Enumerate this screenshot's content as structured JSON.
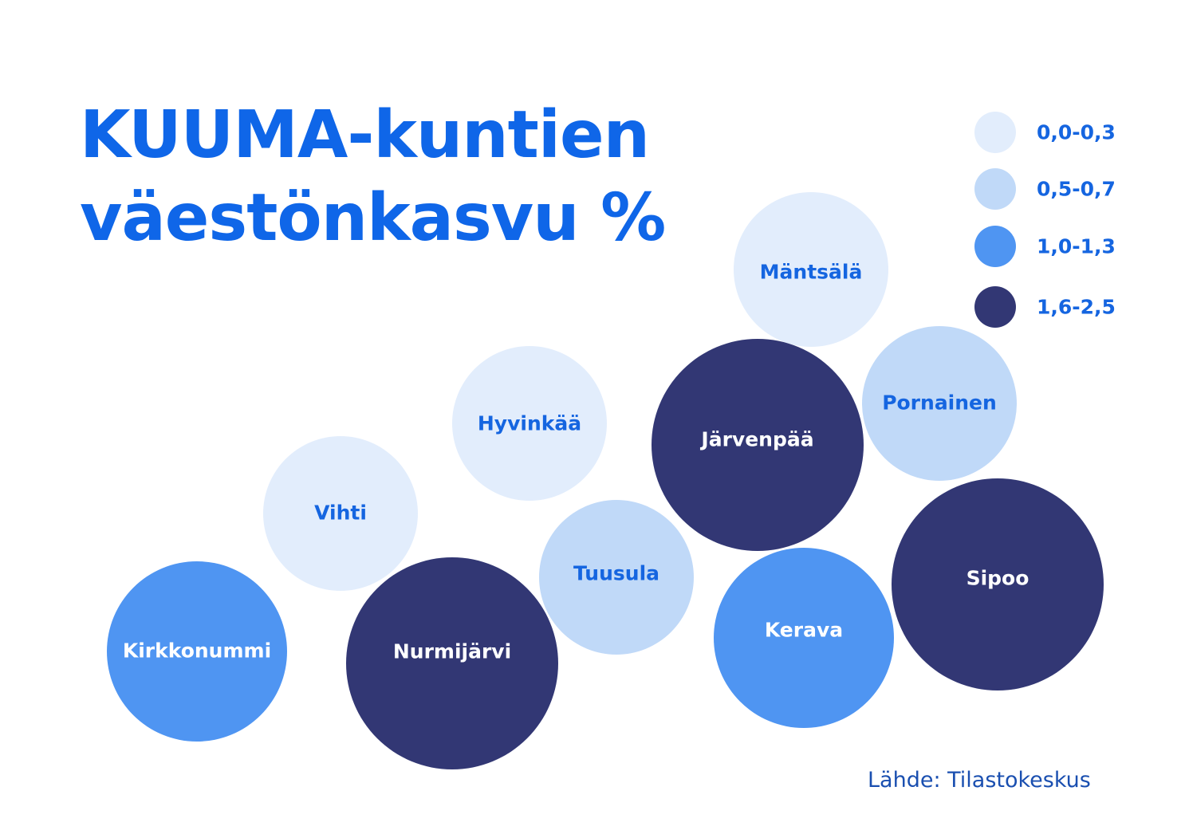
{
  "chart_data": {
    "type": "bubble",
    "title_lines": [
      "KUUMA-kuntien",
      "väestönkasvu %"
    ],
    "source": "Lähde: Tilastokeskus",
    "colors": {
      "class_0": "#e2edfc",
      "class_1": "#c0d9f8",
      "class_2": "#4f95f2",
      "class_3": "#323774",
      "title": "#0f66e8",
      "label_dark": "#1565e0",
      "label_light": "#ffffff"
    },
    "legend": [
      {
        "label": "0,0-0,3",
        "class": 0
      },
      {
        "label": "0,5-0,7",
        "class": 1
      },
      {
        "label": "1,0-1,3",
        "class": 2
      },
      {
        "label": "1,6-2,5",
        "class": 3
      }
    ],
    "municipalities": [
      {
        "name": "Mäntsälä",
        "class": 0
      },
      {
        "name": "Hyvinkää",
        "class": 0
      },
      {
        "name": "Vihti",
        "class": 0
      },
      {
        "name": "Pornainen",
        "class": 1
      },
      {
        "name": "Tuusula",
        "class": 1
      },
      {
        "name": "Kirkkonummi",
        "class": 2
      },
      {
        "name": "Kerava",
        "class": 2
      },
      {
        "name": "Järvenpää",
        "class": 3
      },
      {
        "name": "Nurmijärvi",
        "class": 3
      },
      {
        "name": "Sipoo",
        "class": 3
      }
    ]
  }
}
